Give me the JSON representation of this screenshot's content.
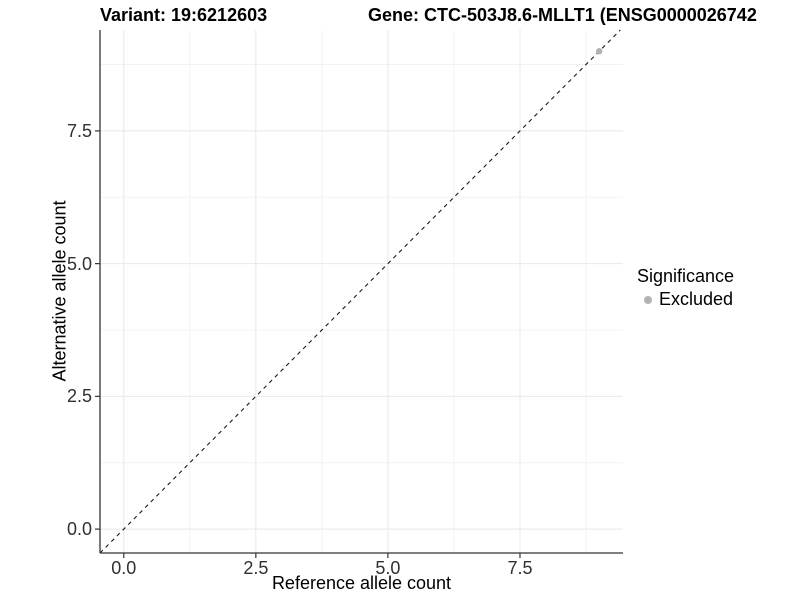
{
  "header": {
    "variant_title": "Variant: 19:6212603",
    "gene_title": "Gene: CTC-503J8.6-MLLT1 (ENSG0000026742"
  },
  "chart_data": {
    "type": "scatter",
    "xlabel": "Reference allele count",
    "ylabel": "Alternative allele count",
    "xlim": [
      -0.45,
      9.45
    ],
    "ylim": [
      -0.45,
      9.4
    ],
    "x_ticks": {
      "values": [
        0,
        2.5,
        5,
        7.5
      ],
      "labels": [
        "0.0",
        "2.5",
        "5.0",
        "7.5"
      ]
    },
    "y_ticks": {
      "values": [
        0,
        2.5,
        5,
        7.5
      ],
      "labels": [
        "0.0",
        "2.5",
        "5.0",
        "7.5"
      ]
    },
    "minor_gridlines": [
      1.25,
      3.75,
      6.25,
      8.75
    ],
    "grid": "on",
    "reference_line": {
      "kind": "identity",
      "slope": 1,
      "intercept": 0,
      "style": "dashed",
      "color": "#1a1a1a"
    },
    "legend": {
      "title": "Significance",
      "position": "right",
      "items": [
        {
          "label": "Excluded",
          "color": "#b3b3b3"
        }
      ]
    },
    "series": [
      {
        "name": "Excluded",
        "marker": "circle",
        "color": "#b3b3b3",
        "points": [
          {
            "x": 9,
            "y": 9
          }
        ]
      }
    ],
    "colors": {
      "grid_major": "#e8e8e8",
      "grid_minor": "#f3f3f3",
      "axis": "#333333",
      "tick_text": "#303030"
    }
  }
}
